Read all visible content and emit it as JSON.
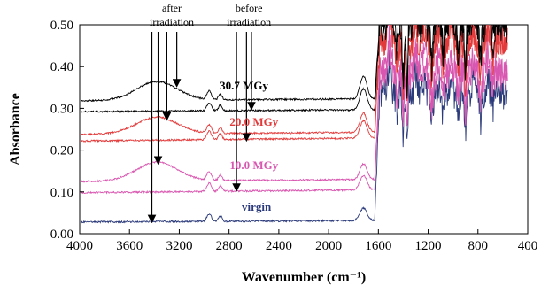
{
  "chart_data": {
    "type": "line",
    "title": "",
    "xlabel": "Wavenumber (cm⁻¹)",
    "ylabel": "Absorbance",
    "xlim": [
      4000,
      400
    ],
    "ylim": [
      0.0,
      0.5
    ],
    "x_reversed": true,
    "x_ticks": [
      4000,
      3600,
      3200,
      2800,
      2400,
      2000,
      1600,
      1200,
      800,
      400
    ],
    "x_tick_labels": [
      "4000",
      "3600",
      "3200",
      "2800",
      "2400",
      "2000",
      "1600",
      "1200",
      "800",
      "400"
    ],
    "y_ticks": [
      0.0,
      0.1,
      0.2,
      0.3,
      0.4,
      0.5
    ],
    "y_tick_labels": [
      "0.00",
      "0.10",
      "0.20",
      "0.30",
      "0.40",
      "0.50"
    ],
    "grid": false,
    "legend": "none",
    "annotations": [
      {
        "text": "after",
        "line2": "irradiation",
        "x": 3260
      },
      {
        "text": "before",
        "line2": "irradiation",
        "x": 2640
      }
    ],
    "arrows": [
      {
        "group": "after",
        "x": 3420,
        "y_end": 0.03
      },
      {
        "group": "after",
        "x": 3370,
        "y_end": 0.17
      },
      {
        "group": "after",
        "x": 3300,
        "y_end": 0.275
      },
      {
        "group": "after",
        "x": 3220,
        "y_end": 0.355
      },
      {
        "group": "before",
        "x": 2740,
        "y_end": 0.105
      },
      {
        "group": "before",
        "x": 2660,
        "y_end": 0.225
      },
      {
        "group": "before",
        "x": 2620,
        "y_end": 0.3
      }
    ],
    "series_labels": [
      {
        "text": "30.7 MGy",
        "x": 2680,
        "y": 0.345,
        "color": "#000000"
      },
      {
        "text": "20.0 MGy",
        "x": 2600,
        "y": 0.258,
        "color": "#e23a3a"
      },
      {
        "text": "10.0 MGy",
        "x": 2600,
        "y": 0.155,
        "color": "#d857b0"
      },
      {
        "text": "virgin",
        "x": 2580,
        "y": 0.055,
        "color": "#2b3a7a"
      }
    ],
    "series": [
      {
        "id": "virgin",
        "color": "#2b3a7a",
        "style": "after",
        "baseline": 0.028,
        "bump": 0.0,
        "drift": 0.003,
        "ch": 0.018
      },
      {
        "id": "g10-before",
        "color": "#d857b0",
        "style": "before",
        "baseline": 0.098,
        "bump": 0.0,
        "drift": 0.006,
        "ch": 0.02
      },
      {
        "id": "g10-after",
        "color": "#d857b0",
        "style": "after",
        "baseline": 0.125,
        "bump": 0.045,
        "drift": 0.004,
        "ch": 0.02
      },
      {
        "id": "g20-before",
        "color": "#e23a3a",
        "style": "before",
        "baseline": 0.222,
        "bump": 0.0,
        "drift": 0.006,
        "ch": 0.02
      },
      {
        "id": "g20-after",
        "color": "#e23a3a",
        "style": "after",
        "baseline": 0.238,
        "bump": 0.04,
        "drift": 0.004,
        "ch": 0.02
      },
      {
        "id": "g30-before",
        "color": "#000000",
        "style": "before",
        "baseline": 0.292,
        "bump": 0.0,
        "drift": 0.004,
        "ch": 0.02
      },
      {
        "id": "g30-after",
        "color": "#000000",
        "style": "after",
        "baseline": 0.318,
        "bump": 0.045,
        "drift": 0.004,
        "ch": 0.02
      }
    ]
  }
}
